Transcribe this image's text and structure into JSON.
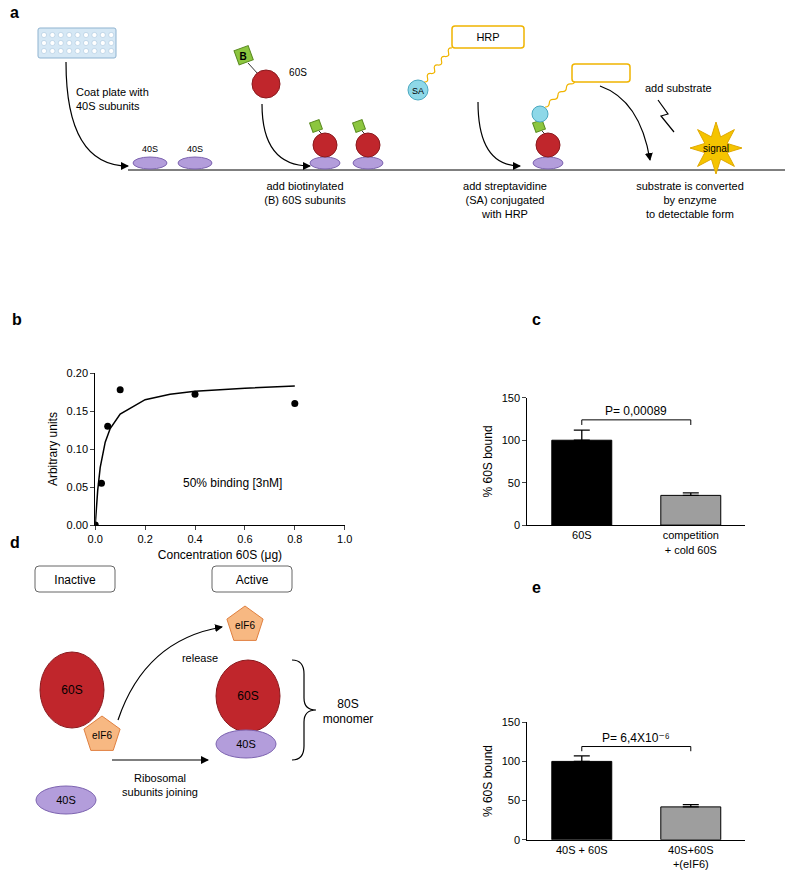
{
  "chart_data": [
    {
      "panel": "b",
      "type": "scatter",
      "xlabel": "Concentration 60S (μg)",
      "ylabel": "Arbitrary units",
      "xlim": [
        0,
        1
      ],
      "ylim": [
        0,
        0.2
      ],
      "xticks": [
        {
          "value": 0,
          "label": "0.0"
        },
        {
          "value": 0.2,
          "label": "0.2"
        },
        {
          "value": 0.4,
          "label": "0.4"
        },
        {
          "value": 0.6,
          "label": "0.6"
        },
        {
          "value": 0.8,
          "label": "0.8"
        },
        {
          "value": 1,
          "label": "1.0"
        }
      ],
      "yticks": [
        {
          "value": 0,
          "label": "0.00"
        },
        {
          "value": 0.05,
          "label": "0.05"
        },
        {
          "value": 0.1,
          "label": "0.10"
        },
        {
          "value": 0.15,
          "label": "0.15"
        },
        {
          "value": 0.2,
          "label": "0.20"
        }
      ],
      "grid": false,
      "annotations": [
        "50% binding [3nM]"
      ],
      "series": [
        {
          "type": "scatter",
          "marker": "circle",
          "color": "#000000",
          "x": [
            0,
            0.025,
            0.05,
            0.1,
            0.4,
            0.8
          ],
          "values": [
            0,
            0.055,
            0.13,
            0.178,
            0.172,
            0.16
          ]
        },
        {
          "type": "line",
          "line_style": "solid",
          "color": "#000000",
          "x": [
            0,
            0.01,
            0.02,
            0.04,
            0.06,
            0.1,
            0.2,
            0.3,
            0.4,
            0.6,
            0.8
          ],
          "values": [
            0,
            0.046,
            0.076,
            0.109,
            0.127,
            0.146,
            0.165,
            0.172,
            0.176,
            0.18,
            0.183
          ]
        }
      ]
    },
    {
      "panel": "c",
      "type": "bar",
      "ylabel": "% 60S bound",
      "categories": [
        "60S",
        "competition\n+ cold 60S"
      ],
      "values": [
        100,
        35
      ],
      "error": [
        12,
        3
      ],
      "colors": [
        "#000000",
        "#9e9e9e"
      ],
      "ylim": [
        0,
        150
      ],
      "yticks": [
        0,
        50,
        100,
        150
      ],
      "grid": false,
      "annotations": [
        "P= 0,00089"
      ]
    },
    {
      "panel": "e",
      "type": "bar",
      "ylabel": "% 60S bound",
      "categories": [
        "40S + 60S",
        "40S+60S\n+(eIF6)"
      ],
      "values": [
        100,
        42
      ],
      "error": [
        7,
        3
      ],
      "colors": [
        "#000000",
        "#9e9e9e"
      ],
      "ylim": [
        0,
        150
      ],
      "yticks": [
        0,
        50,
        100,
        150
      ],
      "grid": false,
      "annotations": [
        "P= 6,4X10⁻⁶"
      ]
    }
  ],
  "diagrams": {
    "a": {
      "panel": "a",
      "coat": [
        "Coat plate with",
        "40S subunits"
      ],
      "subunit_40s": "40S",
      "biotin": "B",
      "subunit_60s": "60S",
      "add_60s": [
        "add biotinylated",
        "(B) 60S subunits"
      ],
      "hrp": "HRP",
      "sa": "SA",
      "add_sa": [
        "add streptavidine",
        "(SA) conjugated",
        "with HRP"
      ],
      "add_substrate": "add substrate",
      "converted": [
        "substrate is converted",
        "by enzyme",
        "to detectable form"
      ],
      "signal": "signal"
    },
    "d": {
      "panel": "d",
      "inactive": "Inactive",
      "active": "Active",
      "subunit_60s": "60S",
      "eif6": "eIF6",
      "subunit_40s": "40S",
      "release": "release",
      "joining": [
        "Ribosomal",
        "subunits joining"
      ],
      "monomer": [
        "80S",
        "monomer"
      ]
    }
  }
}
